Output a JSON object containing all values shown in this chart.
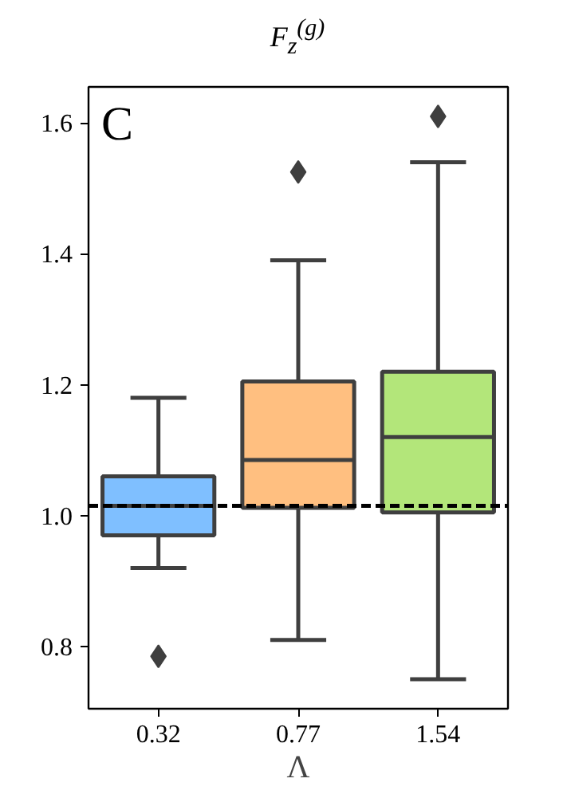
{
  "chart_data": {
    "type": "box",
    "title": "F$_{z}$$^{(g)}$",
    "xlabel": "Λ",
    "categories": [
      "0.32",
      "0.77",
      "1.54"
    ],
    "colors": [
      "#7fbfff",
      "#ffbf80",
      "#b3e67a"
    ],
    "boxes": [
      {
        "low": 0.92,
        "q1": 0.97,
        "median": 1.015,
        "q3": 1.06,
        "high": 1.18,
        "outliers": [
          0.785
        ]
      },
      {
        "low": 0.81,
        "q1": 1.012,
        "median": 1.085,
        "q3": 1.205,
        "high": 1.39,
        "outliers": [
          1.525
        ]
      },
      {
        "low": 0.75,
        "q1": 1.005,
        "median": 1.12,
        "q3": 1.22,
        "high": 1.54,
        "outliers": [
          1.61
        ]
      }
    ],
    "ylim": [
      0.705,
      1.655
    ],
    "yticks": [
      {
        "value": 0.8,
        "label": "0.8"
      },
      {
        "value": 1.0,
        "label": "1.0"
      },
      {
        "value": 1.2,
        "label": "1.2"
      },
      {
        "value": 1.4,
        "label": "1.4"
      },
      {
        "value": 1.6,
        "label": "1.6"
      }
    ],
    "ref_lines": [
      {
        "axis": "y",
        "value": 1.015,
        "label": null,
        "color": "#000000",
        "line_style": "dashed"
      }
    ],
    "annotations": [
      "C"
    ],
    "grid": false,
    "marker": "diamond"
  }
}
